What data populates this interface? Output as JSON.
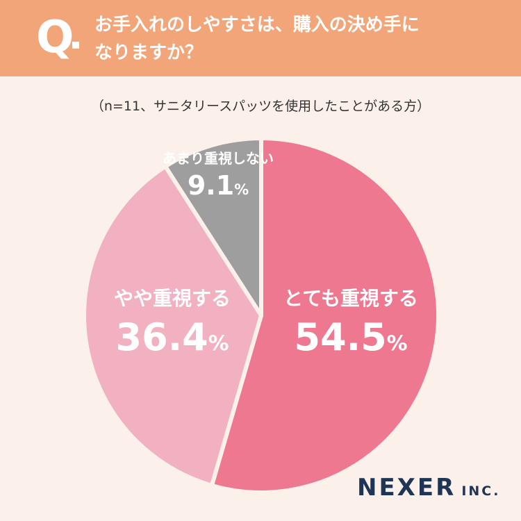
{
  "question": {
    "mark": "Q",
    "line1": "お手入れのしやすさは、購入の決め手に",
    "line2": "なりますか？"
  },
  "note": "（n=11、サニタリースパッツを使用したことがある方）",
  "chart_data": {
    "type": "pie",
    "n": 11,
    "slices": [
      {
        "label": "とても重視する",
        "value": 54.5,
        "display": "54.5",
        "color": "#ee7890"
      },
      {
        "label": "やや重視する",
        "value": 36.4,
        "display": "36.4",
        "color": "#f1b1c0"
      },
      {
        "label": "あまり重視しない",
        "value": 9.1,
        "display": "9.1",
        "color": "#9e9e9e"
      }
    ],
    "unit": "%"
  },
  "brand": {
    "name": "NEXER",
    "suffix": "INC."
  },
  "colors": {
    "header": "#f2a578",
    "background": "#fcf1ea",
    "brand": "#1f3556"
  }
}
